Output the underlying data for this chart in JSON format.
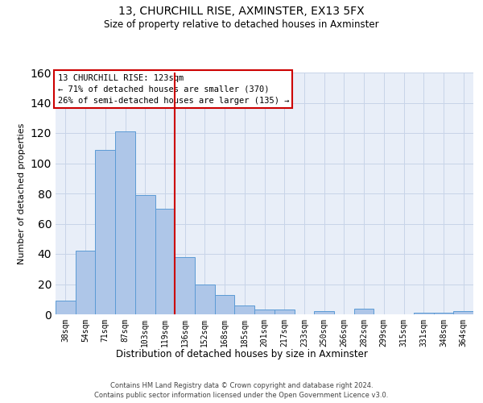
{
  "title1": "13, CHURCHILL RISE, AXMINSTER, EX13 5FX",
  "title2": "Size of property relative to detached houses in Axminster",
  "xlabel": "Distribution of detached houses by size in Axminster",
  "ylabel": "Number of detached properties",
  "footnote1": "Contains HM Land Registry data © Crown copyright and database right 2024.",
  "footnote2": "Contains public sector information licensed under the Open Government Licence v3.0.",
  "bar_labels": [
    "38sqm",
    "54sqm",
    "71sqm",
    "87sqm",
    "103sqm",
    "119sqm",
    "136sqm",
    "152sqm",
    "168sqm",
    "185sqm",
    "201sqm",
    "217sqm",
    "233sqm",
    "250sqm",
    "266sqm",
    "282sqm",
    "299sqm",
    "315sqm",
    "331sqm",
    "348sqm",
    "364sqm"
  ],
  "bar_values": [
    9,
    42,
    109,
    121,
    79,
    70,
    38,
    20,
    13,
    6,
    3,
    3,
    0,
    2,
    0,
    4,
    0,
    0,
    1,
    1,
    2
  ],
  "bar_color": "#aec6e8",
  "bar_edge_color": "#5b9bd5",
  "vline_x": 5.5,
  "vline_color": "#cc0000",
  "ylim_max": 160,
  "yticks": [
    0,
    20,
    40,
    60,
    80,
    100,
    120,
    140,
    160
  ],
  "annotation_line1": "13 CHURCHILL RISE: 123sqm",
  "annotation_line2": "← 71% of detached houses are smaller (370)",
  "annotation_line3": "26% of semi-detached houses are larger (135) →",
  "grid_color": "#c8d4e8",
  "background_color": "#e8eef8",
  "title1_fontsize": 10,
  "title2_fontsize": 8.5,
  "ylabel_fontsize": 8,
  "xlabel_fontsize": 8.5,
  "tick_fontsize": 7,
  "footnote_fontsize": 6,
  "ann_fontsize": 7.5
}
